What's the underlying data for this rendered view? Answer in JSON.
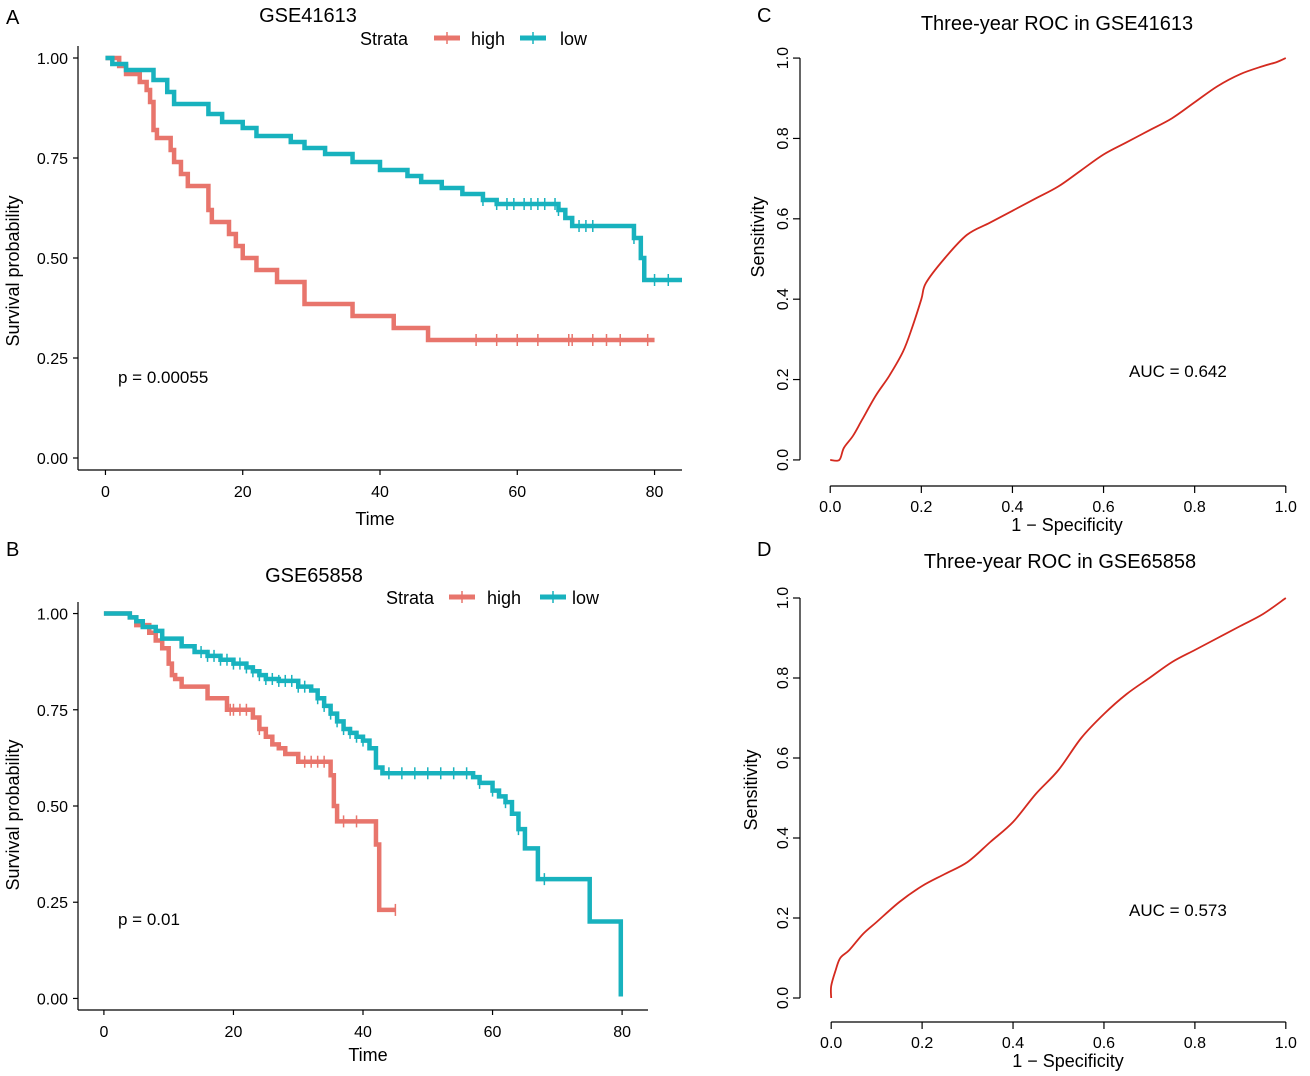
{
  "colors": {
    "high": "#E8756C",
    "low": "#18B2BE",
    "roc": "#D42A1F"
  },
  "chart_data": [
    {
      "panel": "A",
      "type": "line",
      "subtype": "kaplan-meier",
      "title": "GSE41613",
      "xlabel": "Time",
      "ylabel": "Survival probability",
      "xlim": [
        -4,
        84
      ],
      "ylim": [
        -0.03,
        1.03
      ],
      "xticks": [
        "0",
        "20",
        "40",
        "60",
        "80"
      ],
      "yticks": [
        "0.00",
        "0.25",
        "0.50",
        "0.75",
        "1.00"
      ],
      "legend_title": "Strata",
      "legend": [
        "high",
        "low"
      ],
      "p_value": "p = 0.00055",
      "series": [
        {
          "name": "high",
          "steps": [
            [
              0,
              1
            ],
            [
              2,
              0.98
            ],
            [
              3,
              0.96
            ],
            [
              5,
              0.94
            ],
            [
              6,
              0.92
            ],
            [
              6.5,
              0.89
            ],
            [
              7,
              0.82
            ],
            [
              7.5,
              0.8
            ],
            [
              9.5,
              0.77
            ],
            [
              10,
              0.74
            ],
            [
              11,
              0.71
            ],
            [
              12,
              0.68
            ],
            [
              15,
              0.62
            ],
            [
              15.5,
              0.59
            ],
            [
              18,
              0.56
            ],
            [
              19,
              0.53
            ],
            [
              20,
              0.5
            ],
            [
              22,
              0.47
            ],
            [
              25,
              0.44
            ],
            [
              29,
              0.385
            ],
            [
              36,
              0.355
            ],
            [
              42,
              0.325
            ],
            [
              47,
              0.295
            ],
            [
              80,
              0.295
            ]
          ],
          "censor_times": [
            54,
            57,
            60,
            63,
            67.5,
            68,
            71,
            73,
            75,
            79
          ]
        },
        {
          "name": "low",
          "steps": [
            [
              0,
              1
            ],
            [
              1,
              0.985
            ],
            [
              3,
              0.97
            ],
            [
              7,
              0.945
            ],
            [
              9,
              0.915
            ],
            [
              10,
              0.885
            ],
            [
              15,
              0.86
            ],
            [
              17,
              0.84
            ],
            [
              20,
              0.825
            ],
            [
              22,
              0.805
            ],
            [
              27,
              0.79
            ],
            [
              29,
              0.775
            ],
            [
              32,
              0.76
            ],
            [
              36,
              0.74
            ],
            [
              40,
              0.72
            ],
            [
              44,
              0.705
            ],
            [
              46,
              0.69
            ],
            [
              49,
              0.675
            ],
            [
              52,
              0.66
            ],
            [
              55,
              0.645
            ],
            [
              57,
              0.635
            ],
            [
              66,
              0.62
            ],
            [
              67,
              0.6
            ],
            [
              68,
              0.58
            ],
            [
              77,
              0.55
            ],
            [
              78,
              0.5
            ],
            [
              78.5,
              0.445
            ],
            [
              84,
              0.445
            ]
          ],
          "censor_times": [
            55,
            57,
            58.5,
            59.5,
            61,
            62,
            63,
            64,
            65.5,
            66,
            69,
            70,
            71,
            77,
            80,
            82
          ]
        }
      ]
    },
    {
      "panel": "B",
      "type": "line",
      "subtype": "kaplan-meier",
      "title": "GSE65858",
      "xlabel": "Time",
      "ylabel": "Survival probability",
      "xlim": [
        -4,
        84
      ],
      "ylim": [
        -0.03,
        1.03
      ],
      "xticks": [
        "0",
        "20",
        "40",
        "60",
        "80"
      ],
      "yticks": [
        "0.00",
        "0.25",
        "0.50",
        "0.75",
        "1.00"
      ],
      "legend_title": "Strata",
      "legend": [
        "high",
        "low"
      ],
      "p_value": "p = 0.01",
      "series": [
        {
          "name": "high",
          "steps": [
            [
              0,
              1
            ],
            [
              4,
              0.99
            ],
            [
              5,
              0.97
            ],
            [
              7,
              0.95
            ],
            [
              8,
              0.93
            ],
            [
              9,
              0.91
            ],
            [
              10,
              0.87
            ],
            [
              10.5,
              0.84
            ],
            [
              11,
              0.83
            ],
            [
              12,
              0.81
            ],
            [
              16,
              0.78
            ],
            [
              19,
              0.75
            ],
            [
              23,
              0.73
            ],
            [
              24,
              0.7
            ],
            [
              25,
              0.68
            ],
            [
              26,
              0.66
            ],
            [
              27,
              0.65
            ],
            [
              28,
              0.635
            ],
            [
              30,
              0.615
            ],
            [
              35,
              0.58
            ],
            [
              35.5,
              0.5
            ],
            [
              36,
              0.46
            ],
            [
              42,
              0.4
            ],
            [
              42.5,
              0.23
            ],
            [
              45,
              0.23
            ]
          ],
          "censor_times": [
            19.5,
            20,
            21,
            22,
            24,
            31,
            32,
            33,
            34,
            37,
            39,
            45
          ]
        },
        {
          "name": "low",
          "steps": [
            [
              0,
              1
            ],
            [
              4,
              0.99
            ],
            [
              5,
              0.98
            ],
            [
              6,
              0.965
            ],
            [
              8,
              0.955
            ],
            [
              9,
              0.935
            ],
            [
              12,
              0.915
            ],
            [
              14,
              0.9
            ],
            [
              16,
              0.89
            ],
            [
              18,
              0.88
            ],
            [
              20,
              0.87
            ],
            [
              22,
              0.86
            ],
            [
              23,
              0.85
            ],
            [
              24,
              0.84
            ],
            [
              25,
              0.83
            ],
            [
              27,
              0.825
            ],
            [
              30,
              0.81
            ],
            [
              32,
              0.8
            ],
            [
              33,
              0.78
            ],
            [
              34,
              0.76
            ],
            [
              35,
              0.74
            ],
            [
              36,
              0.72
            ],
            [
              37,
              0.7
            ],
            [
              38,
              0.69
            ],
            [
              39,
              0.68
            ],
            [
              40,
              0.67
            ],
            [
              41,
              0.65
            ],
            [
              42,
              0.6
            ],
            [
              43,
              0.585
            ],
            [
              57,
              0.575
            ],
            [
              58,
              0.56
            ],
            [
              60,
              0.54
            ],
            [
              61,
              0.525
            ],
            [
              62,
              0.51
            ],
            [
              63,
              0.48
            ],
            [
              64,
              0.44
            ],
            [
              65,
              0.39
            ],
            [
              67,
              0.31
            ],
            [
              75,
              0.2
            ],
            [
              79.5,
              0.2
            ],
            [
              79.8,
              0.005
            ]
          ],
          "censor_times": [
            15,
            16,
            17,
            18,
            19,
            20,
            21,
            22,
            23,
            24,
            25,
            26,
            27,
            28,
            29,
            30,
            31,
            33,
            34,
            35,
            36,
            37,
            38,
            39,
            40,
            44,
            46,
            48,
            50,
            52,
            54,
            56,
            58,
            60,
            62,
            64,
            68
          ]
        }
      ]
    },
    {
      "panel": "C",
      "type": "line",
      "subtype": "roc",
      "title": "Three-year ROC in GSE41613",
      "xlabel": "1 − Specificity",
      "ylabel": "Sensitivity",
      "xlim": [
        -0.04,
        1.04
      ],
      "ylim": [
        -0.04,
        1.04
      ],
      "xticks": [
        "0.0",
        "0.2",
        "0.4",
        "0.6",
        "0.8",
        "1.0"
      ],
      "yticks": [
        "0.0",
        "0.2",
        "0.4",
        "0.6",
        "0.8",
        "1.0"
      ],
      "auc_label": "AUC = 0.642",
      "x": [
        0.0,
        0.02,
        0.03,
        0.05,
        0.07,
        0.1,
        0.13,
        0.16,
        0.18,
        0.2,
        0.21,
        0.25,
        0.3,
        0.35,
        0.4,
        0.45,
        0.5,
        0.55,
        0.6,
        0.65,
        0.7,
        0.75,
        0.8,
        0.85,
        0.9,
        0.95,
        0.98,
        1.0
      ],
      "y": [
        0.0,
        0.0,
        0.03,
        0.06,
        0.1,
        0.16,
        0.21,
        0.27,
        0.33,
        0.4,
        0.44,
        0.5,
        0.56,
        0.59,
        0.62,
        0.65,
        0.68,
        0.72,
        0.76,
        0.79,
        0.82,
        0.85,
        0.89,
        0.93,
        0.96,
        0.98,
        0.99,
        1.0
      ]
    },
    {
      "panel": "D",
      "type": "line",
      "subtype": "roc",
      "title": "Three-year ROC in GSE65858",
      "xlabel": "1 − Specificity",
      "ylabel": "Sensitivity",
      "xlim": [
        -0.04,
        1.04
      ],
      "ylim": [
        -0.04,
        1.04
      ],
      "xticks": [
        "0.0",
        "0.2",
        "0.4",
        "0.6",
        "0.8",
        "1.0"
      ],
      "yticks": [
        "0.0",
        "0.2",
        "0.4",
        "0.6",
        "0.8",
        "1.0"
      ],
      "auc_label": "AUC = 0.573",
      "x": [
        0.0,
        0.0,
        0.01,
        0.02,
        0.04,
        0.07,
        0.1,
        0.15,
        0.2,
        0.25,
        0.3,
        0.35,
        0.4,
        0.45,
        0.5,
        0.55,
        0.6,
        0.65,
        0.7,
        0.75,
        0.8,
        0.85,
        0.9,
        0.95,
        1.0
      ],
      "y": [
        0.0,
        0.03,
        0.07,
        0.1,
        0.12,
        0.16,
        0.19,
        0.24,
        0.28,
        0.31,
        0.34,
        0.39,
        0.44,
        0.51,
        0.57,
        0.65,
        0.71,
        0.76,
        0.8,
        0.84,
        0.87,
        0.9,
        0.93,
        0.96,
        1.0
      ]
    }
  ]
}
